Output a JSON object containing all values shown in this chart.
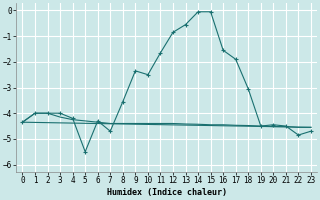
{
  "xlabel": "Humidex (Indice chaleur)",
  "background_color": "#cce8e8",
  "grid_color": "#ffffff",
  "line_color": "#1a7070",
  "xlim": [
    -0.5,
    23.5
  ],
  "ylim": [
    -6.3,
    0.3
  ],
  "yticks": [
    0,
    -1,
    -2,
    -3,
    -4,
    -5,
    -6
  ],
  "xticks": [
    0,
    1,
    2,
    3,
    4,
    5,
    6,
    7,
    8,
    9,
    10,
    11,
    12,
    13,
    14,
    15,
    16,
    17,
    18,
    19,
    20,
    21,
    22,
    23
  ],
  "line1_x": [
    0,
    1,
    2,
    3,
    4,
    5,
    6,
    7,
    8,
    9,
    10,
    11,
    12,
    13,
    14,
    15,
    16,
    17,
    18,
    19,
    20,
    21,
    22,
    23
  ],
  "line1_y": [
    -4.35,
    -4.0,
    -4.0,
    -4.0,
    -4.2,
    -5.5,
    -4.3,
    -4.7,
    -3.55,
    -2.35,
    -2.5,
    -1.65,
    -0.85,
    -0.55,
    -0.05,
    -0.05,
    -1.55,
    -1.9,
    -3.05,
    -4.5,
    -4.45,
    -4.5,
    -4.85,
    -4.7
  ],
  "line2_x": [
    0,
    1,
    2,
    3,
    4,
    5,
    6,
    7,
    8,
    9,
    10,
    11,
    12,
    13,
    14,
    15,
    16,
    17,
    18,
    19,
    20,
    21,
    22,
    23
  ],
  "line2_y": [
    -4.35,
    -4.0,
    -4.0,
    -4.15,
    -4.25,
    -4.3,
    -4.35,
    -4.4,
    -4.4,
    -4.4,
    -4.4,
    -4.4,
    -4.4,
    -4.42,
    -4.43,
    -4.45,
    -4.45,
    -4.47,
    -4.48,
    -4.5,
    -4.52,
    -4.52,
    -4.55,
    -4.55
  ],
  "line3_x": [
    0,
    23
  ],
  "line3_y": [
    -4.35,
    -4.55
  ],
  "marker": "+",
  "xlabel_fontsize": 6,
  "tick_fontsize": 5.5
}
